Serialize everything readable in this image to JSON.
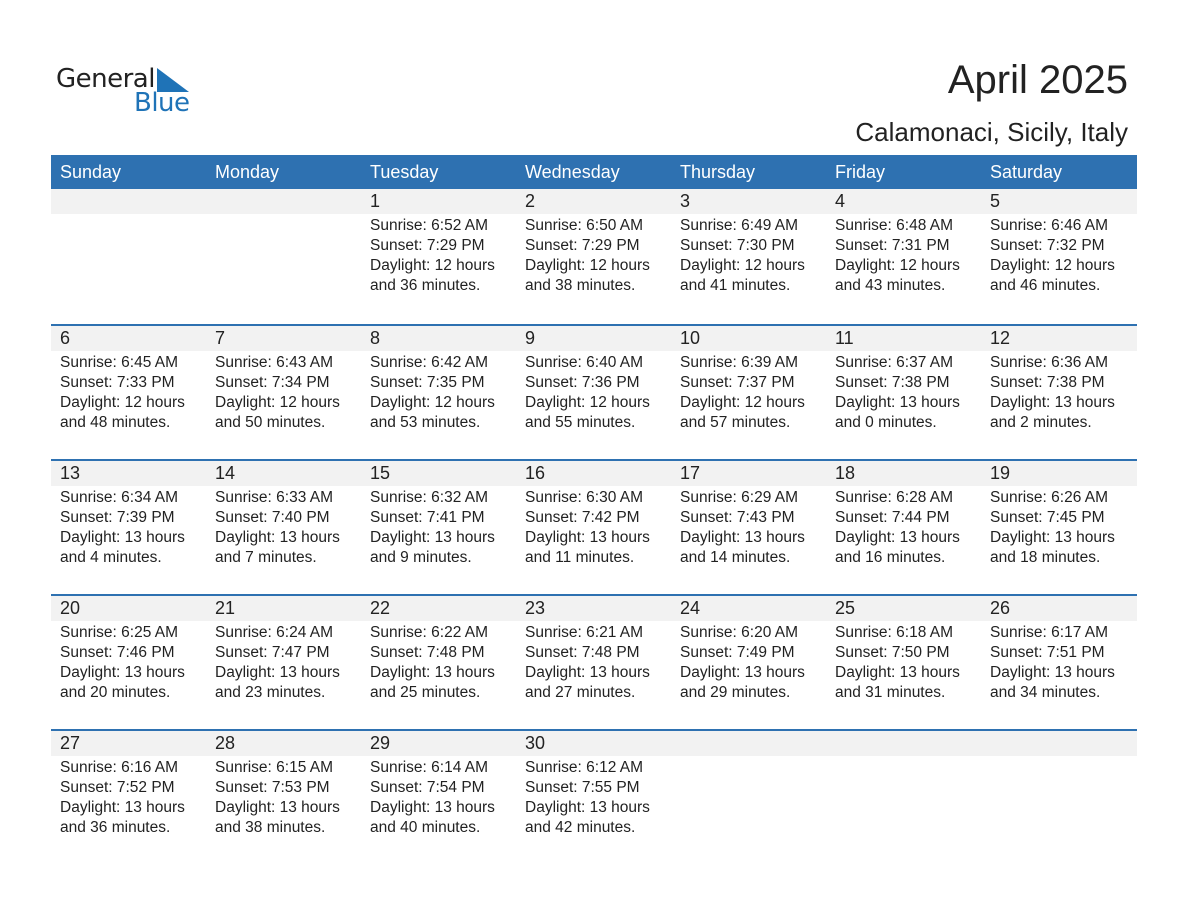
{
  "logo": {
    "general": "General",
    "blue": "Blue",
    "accent": "#1f73b7"
  },
  "title": "April 2025",
  "location": "Calamonaci, Sicily, Italy",
  "colors": {
    "header_bg": "#2e71b1",
    "date_band": "#f2f2f2"
  },
  "weekdays": [
    "Sunday",
    "Monday",
    "Tuesday",
    "Wednesday",
    "Thursday",
    "Friday",
    "Saturday"
  ],
  "first_weekday_index": 2,
  "days": [
    {
      "day": "1",
      "sunrise": "Sunrise: 6:52 AM",
      "sunset": "Sunset: 7:29 PM",
      "daylight": "Daylight: 12 hours",
      "minutes": "and 36 minutes."
    },
    {
      "day": "2",
      "sunrise": "Sunrise: 6:50 AM",
      "sunset": "Sunset: 7:29 PM",
      "daylight": "Daylight: 12 hours",
      "minutes": "and 38 minutes."
    },
    {
      "day": "3",
      "sunrise": "Sunrise: 6:49 AM",
      "sunset": "Sunset: 7:30 PM",
      "daylight": "Daylight: 12 hours",
      "minutes": "and 41 minutes."
    },
    {
      "day": "4",
      "sunrise": "Sunrise: 6:48 AM",
      "sunset": "Sunset: 7:31 PM",
      "daylight": "Daylight: 12 hours",
      "minutes": "and 43 minutes."
    },
    {
      "day": "5",
      "sunrise": "Sunrise: 6:46 AM",
      "sunset": "Sunset: 7:32 PM",
      "daylight": "Daylight: 12 hours",
      "minutes": "and 46 minutes."
    },
    {
      "day": "6",
      "sunrise": "Sunrise: 6:45 AM",
      "sunset": "Sunset: 7:33 PM",
      "daylight": "Daylight: 12 hours",
      "minutes": "and 48 minutes."
    },
    {
      "day": "7",
      "sunrise": "Sunrise: 6:43 AM",
      "sunset": "Sunset: 7:34 PM",
      "daylight": "Daylight: 12 hours",
      "minutes": "and 50 minutes."
    },
    {
      "day": "8",
      "sunrise": "Sunrise: 6:42 AM",
      "sunset": "Sunset: 7:35 PM",
      "daylight": "Daylight: 12 hours",
      "minutes": "and 53 minutes."
    },
    {
      "day": "9",
      "sunrise": "Sunrise: 6:40 AM",
      "sunset": "Sunset: 7:36 PM",
      "daylight": "Daylight: 12 hours",
      "minutes": "and 55 minutes."
    },
    {
      "day": "10",
      "sunrise": "Sunrise: 6:39 AM",
      "sunset": "Sunset: 7:37 PM",
      "daylight": "Daylight: 12 hours",
      "minutes": "and 57 minutes."
    },
    {
      "day": "11",
      "sunrise": "Sunrise: 6:37 AM",
      "sunset": "Sunset: 7:38 PM",
      "daylight": "Daylight: 13 hours",
      "minutes": "and 0 minutes."
    },
    {
      "day": "12",
      "sunrise": "Sunrise: 6:36 AM",
      "sunset": "Sunset: 7:38 PM",
      "daylight": "Daylight: 13 hours",
      "minutes": "and 2 minutes."
    },
    {
      "day": "13",
      "sunrise": "Sunrise: 6:34 AM",
      "sunset": "Sunset: 7:39 PM",
      "daylight": "Daylight: 13 hours",
      "minutes": "and 4 minutes."
    },
    {
      "day": "14",
      "sunrise": "Sunrise: 6:33 AM",
      "sunset": "Sunset: 7:40 PM",
      "daylight": "Daylight: 13 hours",
      "minutes": "and 7 minutes."
    },
    {
      "day": "15",
      "sunrise": "Sunrise: 6:32 AM",
      "sunset": "Sunset: 7:41 PM",
      "daylight": "Daylight: 13 hours",
      "minutes": "and 9 minutes."
    },
    {
      "day": "16",
      "sunrise": "Sunrise: 6:30 AM",
      "sunset": "Sunset: 7:42 PM",
      "daylight": "Daylight: 13 hours",
      "minutes": "and 11 minutes."
    },
    {
      "day": "17",
      "sunrise": "Sunrise: 6:29 AM",
      "sunset": "Sunset: 7:43 PM",
      "daylight": "Daylight: 13 hours",
      "minutes": "and 14 minutes."
    },
    {
      "day": "18",
      "sunrise": "Sunrise: 6:28 AM",
      "sunset": "Sunset: 7:44 PM",
      "daylight": "Daylight: 13 hours",
      "minutes": "and 16 minutes."
    },
    {
      "day": "19",
      "sunrise": "Sunrise: 6:26 AM",
      "sunset": "Sunset: 7:45 PM",
      "daylight": "Daylight: 13 hours",
      "minutes": "and 18 minutes."
    },
    {
      "day": "20",
      "sunrise": "Sunrise: 6:25 AM",
      "sunset": "Sunset: 7:46 PM",
      "daylight": "Daylight: 13 hours",
      "minutes": "and 20 minutes."
    },
    {
      "day": "21",
      "sunrise": "Sunrise: 6:24 AM",
      "sunset": "Sunset: 7:47 PM",
      "daylight": "Daylight: 13 hours",
      "minutes": "and 23 minutes."
    },
    {
      "day": "22",
      "sunrise": "Sunrise: 6:22 AM",
      "sunset": "Sunset: 7:48 PM",
      "daylight": "Daylight: 13 hours",
      "minutes": "and 25 minutes."
    },
    {
      "day": "23",
      "sunrise": "Sunrise: 6:21 AM",
      "sunset": "Sunset: 7:48 PM",
      "daylight": "Daylight: 13 hours",
      "minutes": "and 27 minutes."
    },
    {
      "day": "24",
      "sunrise": "Sunrise: 6:20 AM",
      "sunset": "Sunset: 7:49 PM",
      "daylight": "Daylight: 13 hours",
      "minutes": "and 29 minutes."
    },
    {
      "day": "25",
      "sunrise": "Sunrise: 6:18 AM",
      "sunset": "Sunset: 7:50 PM",
      "daylight": "Daylight: 13 hours",
      "minutes": "and 31 minutes."
    },
    {
      "day": "26",
      "sunrise": "Sunrise: 6:17 AM",
      "sunset": "Sunset: 7:51 PM",
      "daylight": "Daylight: 13 hours",
      "minutes": "and 34 minutes."
    },
    {
      "day": "27",
      "sunrise": "Sunrise: 6:16 AM",
      "sunset": "Sunset: 7:52 PM",
      "daylight": "Daylight: 13 hours",
      "minutes": "and 36 minutes."
    },
    {
      "day": "28",
      "sunrise": "Sunrise: 6:15 AM",
      "sunset": "Sunset: 7:53 PM",
      "daylight": "Daylight: 13 hours",
      "minutes": "and 38 minutes."
    },
    {
      "day": "29",
      "sunrise": "Sunrise: 6:14 AM",
      "sunset": "Sunset: 7:54 PM",
      "daylight": "Daylight: 13 hours",
      "minutes": "and 40 minutes."
    },
    {
      "day": "30",
      "sunrise": "Sunrise: 6:12 AM",
      "sunset": "Sunset: 7:55 PM",
      "daylight": "Daylight: 13 hours",
      "minutes": "and 42 minutes."
    }
  ]
}
